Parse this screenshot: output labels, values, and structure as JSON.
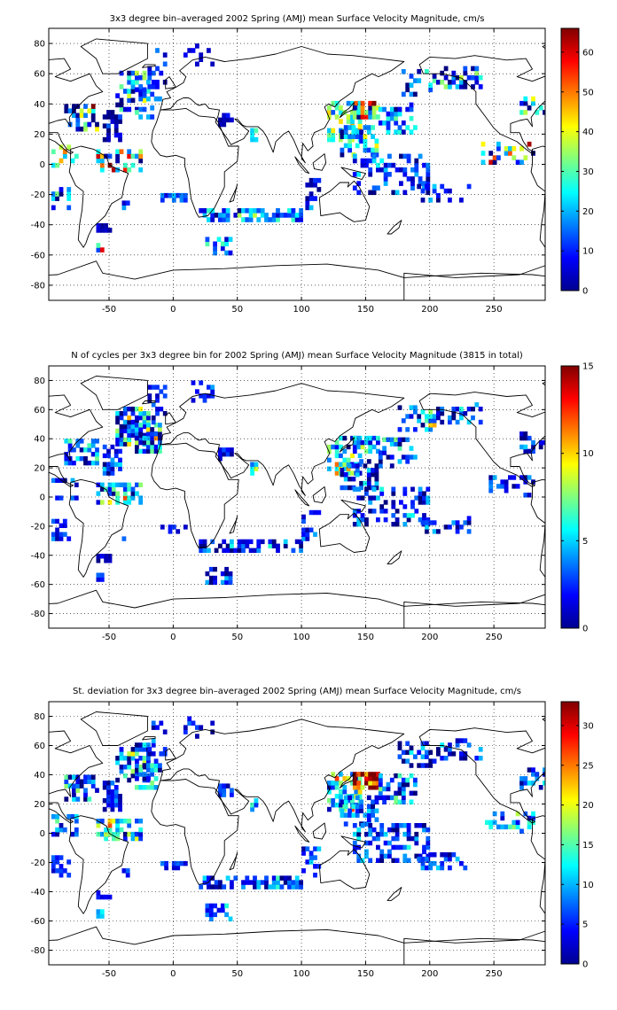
{
  "chart_data": [
    {
      "type": "heatmap",
      "title": "3x3 degree bin–averaged 2002 Spring (AMJ) mean Surface Velocity Magnitude, cm/s",
      "xlim": [
        -97,
        290
      ],
      "ylim": [
        -90,
        90
      ],
      "xticks": [
        -50,
        0,
        50,
        100,
        150,
        200,
        250
      ],
      "yticks": [
        80,
        60,
        40,
        20,
        0,
        -20,
        -40,
        -60,
        -80
      ],
      "grid": true,
      "colorbar": {
        "min": 0,
        "max": 66,
        "ticks": [
          60,
          50,
          40,
          30,
          20,
          10,
          0
        ]
      },
      "seed": 11,
      "cells": [
        [
          -55,
          -40,
          15,
          35,
          4,
          0.25,
          0.6
        ],
        [
          -45,
          -20,
          35,
          62,
          10,
          0.65,
          0.4
        ],
        [
          -30,
          -10,
          30,
          50,
          16,
          0.25,
          0.4
        ],
        [
          -85,
          -60,
          22,
          38,
          14,
          0.85,
          0.5
        ],
        [
          -95,
          -75,
          -2,
          12,
          30,
          0.55,
          0.4
        ],
        [
          -20,
          -5,
          50,
          75,
          8,
          0.2,
          0.3
        ],
        [
          8,
          30,
          65,
          80,
          4,
          0.15,
          0.3
        ],
        [
          -60,
          -25,
          -5,
          10,
          34,
          0.85,
          0.5
        ],
        [
          -95,
          -80,
          -30,
          -15,
          14,
          0.45,
          0.5
        ],
        [
          -60,
          -50,
          -45,
          -40,
          4,
          0.05,
          0.8
        ],
        [
          -60,
          -55,
          -58,
          -52,
          30,
          0.7,
          0.9
        ],
        [
          -10,
          10,
          -25,
          -20,
          16,
          0.3,
          0.5
        ],
        [
          60,
          65,
          15,
          22,
          20,
          0.2,
          0.8
        ],
        [
          20,
          100,
          -38,
          -30,
          18,
          0.4,
          0.6
        ],
        [
          25,
          45,
          -60,
          -50,
          12,
          0.5,
          0.5
        ],
        [
          100,
          115,
          -30,
          -10,
          8,
          0.3,
          0.4
        ],
        [
          120,
          145,
          15,
          40,
          28,
          0.55,
          0.5
        ],
        [
          140,
          160,
          30,
          42,
          30,
          0.95,
          0.7
        ],
        [
          130,
          160,
          5,
          25,
          18,
          0.55,
          0.5
        ],
        [
          160,
          190,
          20,
          40,
          16,
          0.35,
          0.5
        ],
        [
          175,
          205,
          45,
          62,
          16,
          0.6,
          0.4
        ],
        [
          205,
          240,
          50,
          65,
          10,
          0.5,
          0.4
        ],
        [
          140,
          200,
          -20,
          5,
          10,
          0.35,
          0.4
        ],
        [
          190,
          230,
          -25,
          -15,
          10,
          0.35,
          0.3
        ],
        [
          240,
          280,
          0,
          15,
          30,
          0.7,
          0.4
        ],
        [
          270,
          290,
          30,
          45,
          16,
          0.6,
          0.4
        ],
        [
          35,
          45,
          25,
          32,
          6,
          0.2,
          0.6
        ],
        [
          -40,
          -35,
          -30,
          -25,
          12,
          0.2,
          0.5
        ]
      ]
    },
    {
      "type": "heatmap",
      "title": "N of cycles per 3x3 degree bin for 2002 Spring (AMJ) mean Surface Velocity Magnitude (3815 in total)",
      "xlim": [
        -97,
        290
      ],
      "ylim": [
        -90,
        90
      ],
      "xticks": [
        -50,
        0,
        50,
        100,
        150,
        200,
        250
      ],
      "yticks": [
        80,
        60,
        40,
        20,
        0,
        -20,
        -40,
        -60,
        -80
      ],
      "grid": true,
      "colorbar": {
        "min": 0,
        "max": 15,
        "ticks": [
          15,
          10,
          5,
          0
        ]
      },
      "seed": 27,
      "cells": [
        [
          -55,
          -40,
          15,
          35,
          3,
          0.3,
          0.6
        ],
        [
          -45,
          -20,
          35,
          62,
          3,
          0.75,
          0.8
        ],
        [
          -30,
          -10,
          30,
          50,
          4,
          0.7,
          0.8
        ],
        [
          -85,
          -60,
          22,
          38,
          3,
          0.5,
          0.5
        ],
        [
          -95,
          -75,
          -2,
          12,
          2,
          0.35,
          0.4
        ],
        [
          -20,
          -5,
          50,
          75,
          2,
          0.25,
          0.3
        ],
        [
          8,
          30,
          65,
          80,
          2,
          0.2,
          0.3
        ],
        [
          -60,
          -25,
          -5,
          10,
          5,
          0.6,
          0.6
        ],
        [
          -95,
          -80,
          -30,
          -15,
          2,
          0.2,
          0.5
        ],
        [
          -60,
          -50,
          -45,
          -40,
          1,
          0.1,
          0.8
        ],
        [
          -60,
          -55,
          -58,
          -52,
          2,
          0.2,
          0.9
        ],
        [
          -10,
          10,
          -25,
          -20,
          2,
          0.2,
          0.5
        ],
        [
          60,
          65,
          15,
          22,
          5,
          0.6,
          0.8
        ],
        [
          20,
          100,
          -38,
          -30,
          2,
          0.35,
          0.6
        ],
        [
          25,
          45,
          -60,
          -50,
          2,
          0.4,
          0.5
        ],
        [
          100,
          115,
          -30,
          -10,
          2,
          0.2,
          0.4
        ],
        [
          120,
          145,
          15,
          40,
          5,
          0.6,
          0.6
        ],
        [
          140,
          160,
          30,
          42,
          4,
          0.5,
          0.7
        ],
        [
          130,
          160,
          5,
          25,
          2,
          0.35,
          0.5
        ],
        [
          160,
          190,
          20,
          40,
          3,
          0.5,
          0.5
        ],
        [
          175,
          205,
          45,
          62,
          4,
          0.55,
          0.4
        ],
        [
          205,
          240,
          50,
          65,
          2,
          0.35,
          0.4
        ],
        [
          140,
          200,
          -20,
          5,
          2,
          0.35,
          0.4
        ],
        [
          190,
          230,
          -25,
          -15,
          2,
          0.3,
          0.3
        ],
        [
          240,
          280,
          0,
          15,
          2,
          0.3,
          0.4
        ],
        [
          270,
          290,
          30,
          45,
          2,
          0.5,
          0.4
        ],
        [
          35,
          45,
          25,
          32,
          2,
          0.2,
          0.6
        ],
        [
          -40,
          -35,
          -30,
          -25,
          2,
          0.2,
          0.5
        ]
      ]
    },
    {
      "type": "heatmap",
      "title": "St. deviation for 3x3 degree bin–averaged 2002 Spring (AMJ) mean Surface Velocity Magnitude, cm/s",
      "xlim": [
        -97,
        290
      ],
      "ylim": [
        -90,
        90
      ],
      "xticks": [
        -50,
        0,
        50,
        100,
        150,
        200,
        250
      ],
      "yticks": [
        80,
        60,
        40,
        20,
        0,
        -20,
        -40,
        -60,
        -80
      ],
      "grid": true,
      "colorbar": {
        "min": 0,
        "max": 33,
        "ticks": [
          30,
          25,
          20,
          15,
          10,
          5,
          0
        ]
      },
      "seed": 53,
      "cells": [
        [
          -55,
          -40,
          15,
          35,
          5,
          0.3,
          0.6
        ],
        [
          -45,
          -20,
          35,
          62,
          6,
          0.75,
          0.6
        ],
        [
          -30,
          -10,
          30,
          50,
          6,
          0.6,
          0.6
        ],
        [
          -85,
          -60,
          22,
          38,
          8,
          0.6,
          0.5
        ],
        [
          -95,
          -75,
          -2,
          12,
          8,
          0.35,
          0.4
        ],
        [
          -20,
          -5,
          50,
          75,
          4,
          0.25,
          0.3
        ],
        [
          8,
          30,
          65,
          80,
          4,
          0.2,
          0.3
        ],
        [
          -60,
          -25,
          -5,
          10,
          12,
          0.6,
          0.6
        ],
        [
          -95,
          -80,
          -30,
          -15,
          6,
          0.2,
          0.5
        ],
        [
          -60,
          -50,
          -45,
          -40,
          4,
          0.1,
          0.8
        ],
        [
          -60,
          -55,
          -58,
          -52,
          12,
          0.3,
          0.9
        ],
        [
          -10,
          10,
          -25,
          -20,
          4,
          0.2,
          0.5
        ],
        [
          60,
          65,
          15,
          22,
          10,
          0.3,
          0.8
        ],
        [
          20,
          100,
          -38,
          -30,
          5,
          0.35,
          0.6
        ],
        [
          25,
          45,
          -60,
          -50,
          5,
          0.4,
          0.5
        ],
        [
          100,
          115,
          -30,
          -10,
          6,
          0.2,
          0.4
        ],
        [
          120,
          145,
          15,
          40,
          12,
          0.55,
          0.6
        ],
        [
          140,
          160,
          30,
          42,
          32,
          0.6,
          0.7
        ],
        [
          130,
          160,
          5,
          25,
          7,
          0.35,
          0.5
        ],
        [
          160,
          190,
          20,
          40,
          7,
          0.5,
          0.5
        ],
        [
          175,
          205,
          45,
          62,
          6,
          0.55,
          0.4
        ],
        [
          205,
          240,
          50,
          65,
          5,
          0.35,
          0.4
        ],
        [
          140,
          200,
          -20,
          5,
          6,
          0.35,
          0.4
        ],
        [
          190,
          230,
          -25,
          -15,
          5,
          0.3,
          0.3
        ],
        [
          240,
          280,
          0,
          15,
          10,
          0.3,
          0.4
        ],
        [
          270,
          290,
          30,
          45,
          7,
          0.5,
          0.4
        ],
        [
          35,
          45,
          25,
          32,
          5,
          0.2,
          0.6
        ],
        [
          -40,
          -35,
          -30,
          -25,
          5,
          0.2,
          0.5
        ]
      ]
    }
  ]
}
